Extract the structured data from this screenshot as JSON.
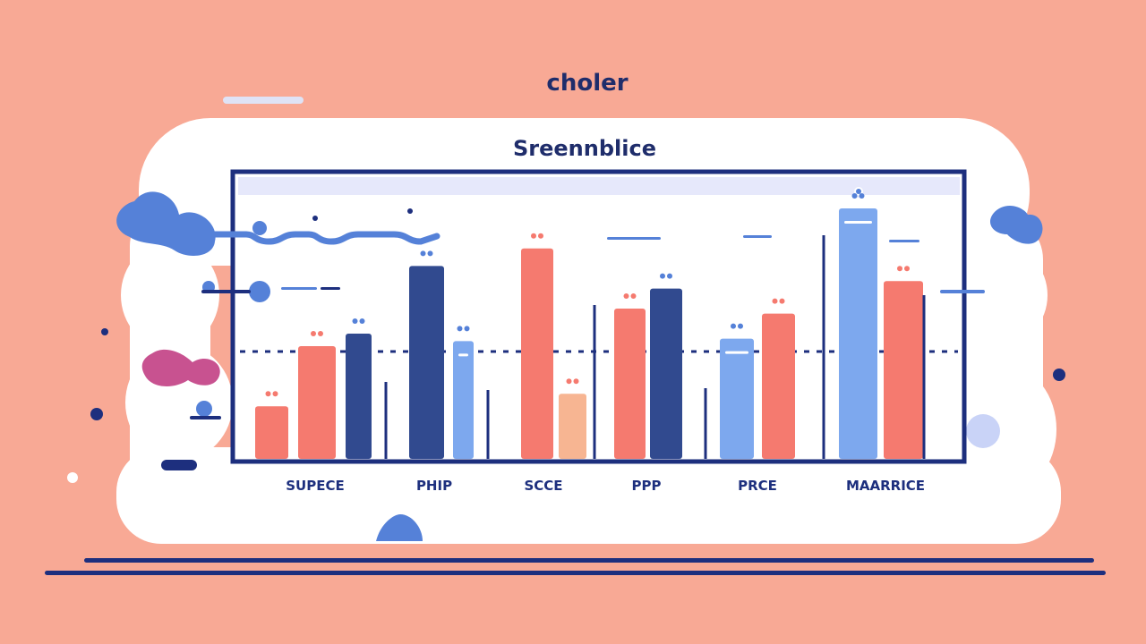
{
  "header": {
    "brand": "choler",
    "title": "Sreennblice"
  },
  "colors": {
    "background": "#f8a995",
    "card": "#ffffff",
    "navy": "#1d2f7e",
    "dark_blue": "#314a8f",
    "salmon": "#f57a6f",
    "light_blue": "#7da8ee",
    "peach": "#f7b592",
    "pink": "#c85290",
    "mid_blue": "#5581d8"
  },
  "chart_data": {
    "type": "bar",
    "categories": [
      "SUPECE",
      "PHIP",
      "SCCE",
      "PPP",
      "PRCE",
      "MAARRICE"
    ],
    "bars": [
      {
        "category": "SUPECE",
        "color": "salmon",
        "value": 21
      },
      {
        "category": "SUPECE",
        "color": "salmon",
        "value": 45
      },
      {
        "category": "SUPECE",
        "color": "dark_blue",
        "value": 50
      },
      {
        "category": "PHIP",
        "color": "dark_blue",
        "value": 77
      },
      {
        "category": "PHIP",
        "color": "light_blue",
        "value": 47
      },
      {
        "category": "SCCE",
        "color": "salmon",
        "value": 84
      },
      {
        "category": "SCCE",
        "color": "peach",
        "value": 26
      },
      {
        "category": "PPP",
        "color": "salmon",
        "value": 60
      },
      {
        "category": "PPP",
        "color": "dark_blue",
        "value": 68
      },
      {
        "category": "PRCE",
        "color": "light_blue",
        "value": 48
      },
      {
        "category": "PRCE",
        "color": "salmon",
        "value": 58
      },
      {
        "category": "MAARRICE",
        "color": "light_blue",
        "value": 100
      },
      {
        "category": "MAARRICE",
        "color": "salmon",
        "value": 71
      }
    ],
    "ylim": [
      0,
      100
    ]
  }
}
